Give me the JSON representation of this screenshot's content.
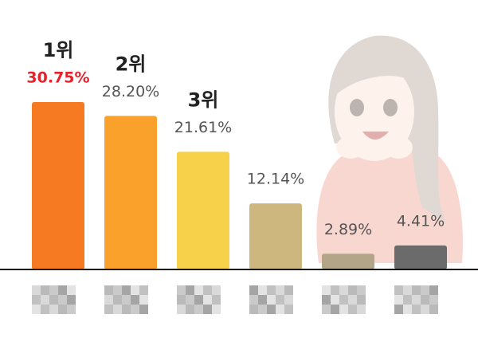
{
  "chart_data": {
    "type": "bar",
    "categories": [
      null,
      null,
      null,
      null,
      null,
      null
    ],
    "values": [
      30.75,
      28.2,
      21.61,
      12.14,
      2.89,
      4.41
    ],
    "value_labels": [
      "30.75%",
      "28.20%",
      "21.61%",
      "12.14%",
      "2.89%",
      "4.41%"
    ],
    "value_label_colors": [
      "#e8202a",
      "#555555",
      "#555555",
      "#555555",
      "#555555",
      "#555555"
    ],
    "colors": [
      "#f57a22",
      "#f9a12b",
      "#f8d14a",
      "#cdb77e",
      "#b3a688",
      "#6b6b6b"
    ],
    "rank_labels": [
      "1위",
      "2위",
      "3위"
    ]
  }
}
